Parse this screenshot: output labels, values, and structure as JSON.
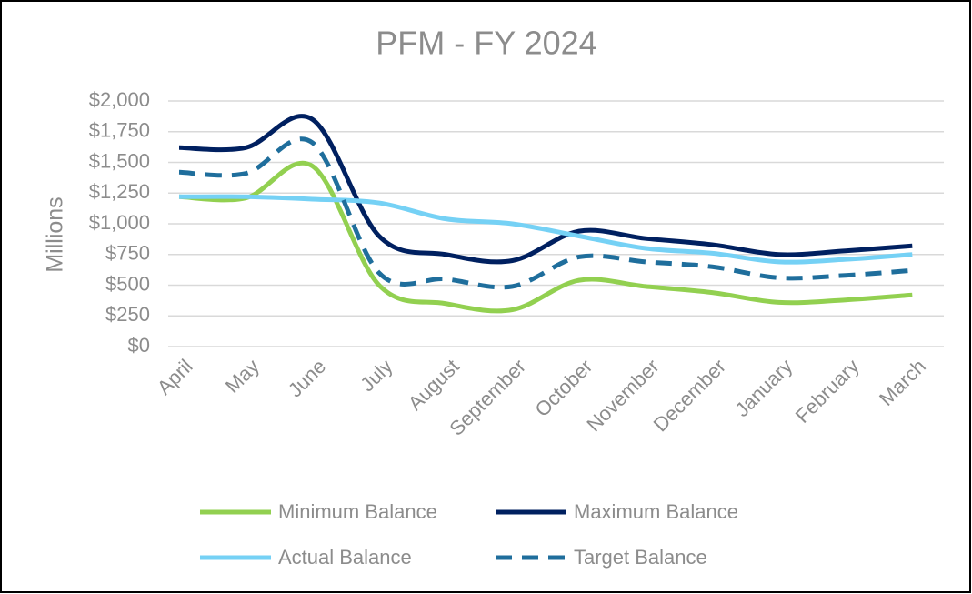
{
  "chart_data": {
    "type": "line",
    "title": "PFM - FY 2024",
    "y_label": "Millions",
    "categories": [
      "April",
      "May",
      "June",
      "July",
      "August",
      "September",
      "October",
      "November",
      "December",
      "January",
      "February",
      "March"
    ],
    "series": [
      {
        "name": "Minimum Balance",
        "color": "#92d050",
        "values": [
          1220,
          1210,
          1470,
          500,
          350,
          300,
          540,
          490,
          440,
          360,
          380,
          420
        ]
      },
      {
        "name": "Maximum Balance",
        "color": "#002060",
        "values": [
          1620,
          1620,
          1850,
          900,
          750,
          700,
          940,
          880,
          830,
          750,
          780,
          820
        ]
      },
      {
        "name": "Actual Balance",
        "color": "#75d1f5",
        "values": [
          1220,
          1220,
          1200,
          1170,
          1040,
          1000,
          900,
          800,
          760,
          690,
          710,
          750
        ]
      },
      {
        "name": "Target Balance",
        "color": "#1f6e9c",
        "dashed": true,
        "values": [
          1420,
          1410,
          1660,
          600,
          550,
          490,
          730,
          690,
          650,
          560,
          580,
          620
        ]
      }
    ],
    "ylim": [
      0,
      2000
    ],
    "yticks": [
      {
        "value": 0,
        "label": "$0"
      },
      {
        "value": 250,
        "label": "$250"
      },
      {
        "value": 500,
        "label": "$500"
      },
      {
        "value": 750,
        "label": "$750"
      },
      {
        "value": 1000,
        "label": "$1,000"
      },
      {
        "value": 1250,
        "label": "$1,250"
      },
      {
        "value": 1500,
        "label": "$1,500"
      },
      {
        "value": 1750,
        "label": "$1,750"
      },
      {
        "value": 2000,
        "label": "$2,000"
      }
    ],
    "grid": true
  }
}
